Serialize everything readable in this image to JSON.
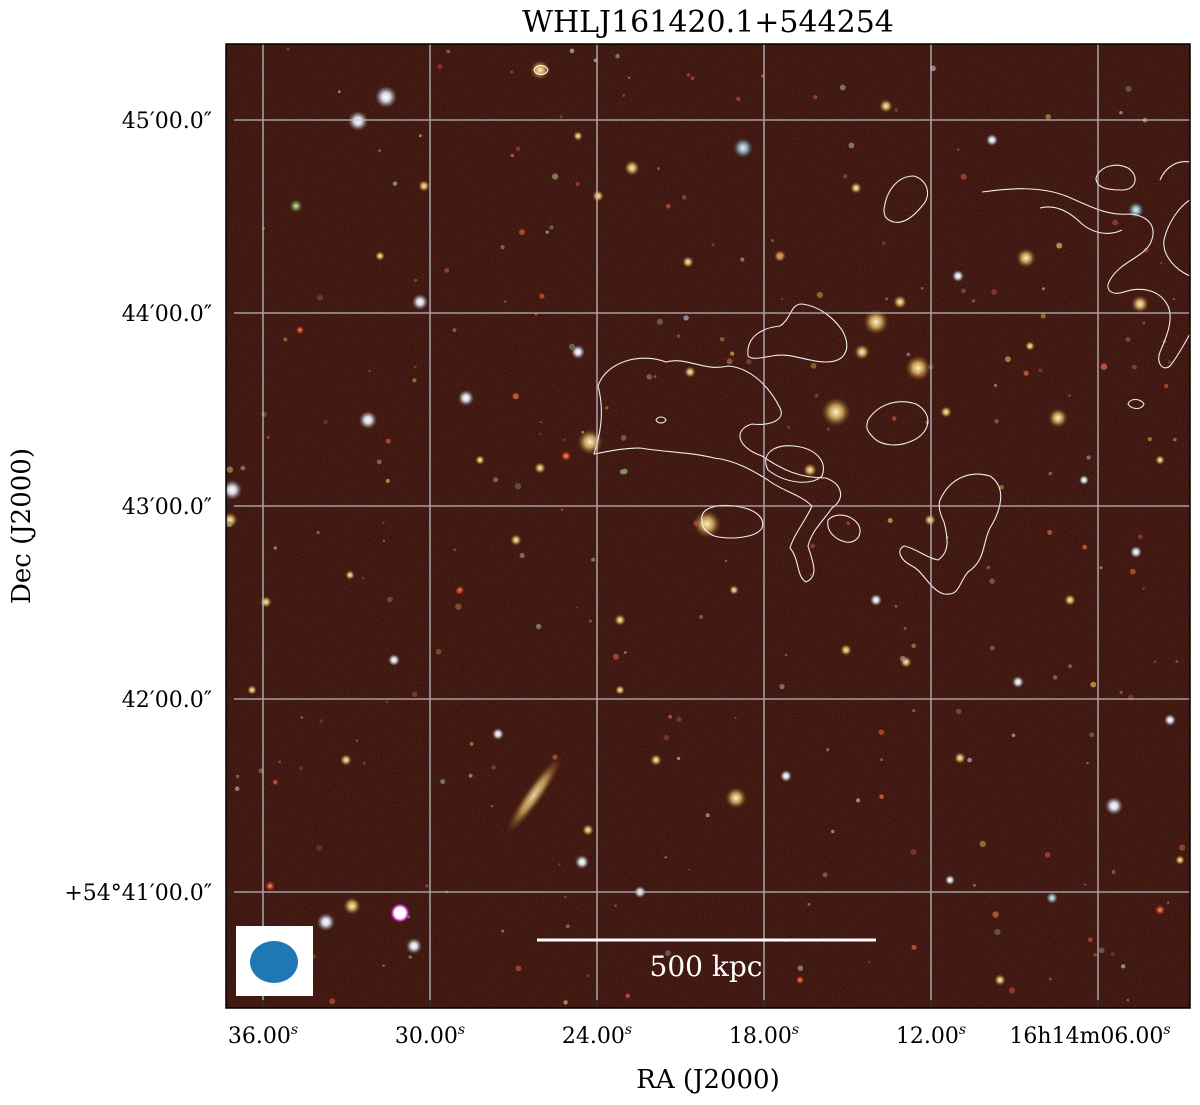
{
  "figure": {
    "title": "WHLJ161420.1+544254",
    "xlabel": "RA (J2000)",
    "ylabel": "Dec (J2000)",
    "ra_ticks": [
      {
        "label": "36.00",
        "sup": "s"
      },
      {
        "label": "30.00",
        "sup": "s"
      },
      {
        "label": "24.00",
        "sup": "s"
      },
      {
        "label": "18.00",
        "sup": "s"
      },
      {
        "label": "12.00",
        "sup": "s"
      },
      {
        "label": "16h14m06.00",
        "sup": "s"
      }
    ],
    "dec_ticks": [
      "45′00.0″",
      "44′00.0″",
      "43′00.0″",
      "42′00.0″",
      "+54°41′00.0″"
    ],
    "scale_bar_label": "500 kpc",
    "colors": {
      "background": "#2a0a06",
      "contour": "#ffffff",
      "grid": "#c8c8d0",
      "beam": "#1f77b4"
    },
    "grid": true,
    "image_type": "optical composite (gri) with white radio contours, beam ellipse lower-left"
  }
}
